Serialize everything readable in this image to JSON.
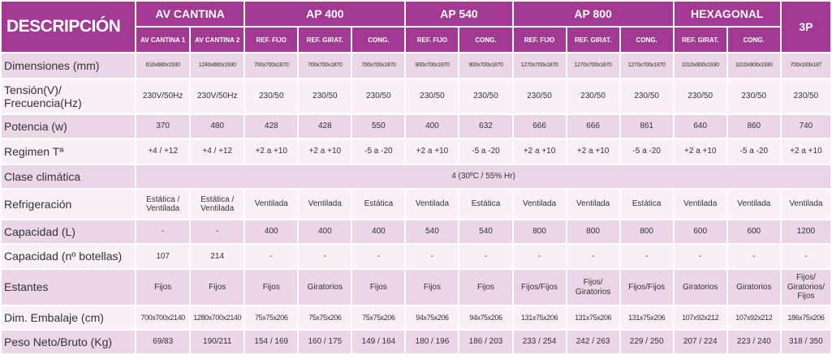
{
  "colors": {
    "header_bg": "#a23a94",
    "row_shaded": "#ead6e7",
    "row_light": "#f8f0f6",
    "text": "#333333"
  },
  "header": {
    "title": "DESCRIPCIÓN",
    "models": [
      "AV CANTINA",
      "AP 400",
      "AP 540",
      "AP 800",
      "HEXAGONAL",
      "3P"
    ],
    "sub": [
      "AV CANTINA 1",
      "AV CANTINA 2",
      "REF. FIJO",
      "REF. GIRAT.",
      "CONG.",
      "REF. FIJO",
      "CONG.",
      "REF. FIJO",
      "REF. GIRAT.",
      "CONG.",
      "REF. GIRAT.",
      "CONG."
    ]
  },
  "rows": [
    {
      "label": "Dimensiones (mm)",
      "values": [
        "610x680x1930",
        "1240x680x1930",
        "700x700x1870",
        "700x700x1870",
        "700x700x1870",
        "900x700x1870",
        "900x700x1870",
        "1270x700x1870",
        "1270x700x1870",
        "1270x700x1870",
        "1010x900x1930",
        "1010x900x1930",
        "700x183x187"
      ]
    },
    {
      "label": "Tensión(V)/ Frecuencia(Hz)",
      "values": [
        "230V/50Hz",
        "230V/50Hz",
        "230/50",
        "230/50",
        "230/50",
        "230/50",
        "230/50",
        "230/50",
        "230/50",
        "230/50",
        "230/50",
        "230/50",
        "230/50"
      ]
    },
    {
      "label": "Potencia (w)",
      "values": [
        "370",
        "480",
        "428",
        "428",
        "550",
        "400",
        "632",
        "666",
        "666",
        "861",
        "640",
        "860",
        "740"
      ]
    },
    {
      "label": "Regimen Tª",
      "values": [
        "+4 / +12",
        "+4 / +12",
        "+2 a +10",
        "+2 a +10",
        "-5 a -20",
        "+2 a +10",
        "-5 a -20",
        "+2 a +10",
        "+2 a +10",
        "-5 a -20",
        "+2 a +10",
        "-5 a -20",
        "+2 a +10"
      ]
    },
    {
      "label": "Clase climática",
      "span_value": "4 (30ºC / 55% Hr)"
    },
    {
      "label": "Refrigeración",
      "values": [
        "Estática / Ventilada",
        "Estática / Ventilada",
        "Ventilada",
        "Ventilada",
        "Estática",
        "Ventilada",
        "Estática",
        "Ventilada",
        "Ventilada",
        "Estática",
        "Ventilada",
        "Ventilada",
        "Ventilada"
      ]
    },
    {
      "label": "Capacidad (L)",
      "values": [
        "-",
        "-",
        "400",
        "400",
        "400",
        "540",
        "540",
        "800",
        "800",
        "800",
        "600",
        "600",
        "1200"
      ]
    },
    {
      "label": "Capacidad (nº botellas)",
      "values": [
        "107",
        "214",
        "-",
        "-",
        "-",
        "-",
        "-",
        "-",
        "-",
        "-",
        "-",
        "-",
        "-"
      ]
    },
    {
      "label": "Estantes",
      "values": [
        "Fijos",
        "Fijos",
        "Fijos",
        "Giratorios",
        "Fijos",
        "Fijos",
        "Fijos",
        "Fijos/Fijos",
        "Fijos/ Giratorios",
        "Fijos/Fijos",
        "Giratorios",
        "Giratorios",
        "Fijos/ Giratorios/ Fijos"
      ]
    },
    {
      "label": "Dim. Embalaje (cm)",
      "values": [
        "700x700x2140",
        "1280x700x2140",
        "75x75x206",
        "75x75x206",
        "75x75x206",
        "94x75x206",
        "94x75x206",
        "131x75x206",
        "131x75x206",
        "131x75x206",
        "107x92x212",
        "107x92x212",
        "186x75x206"
      ]
    },
    {
      "label": "Peso Neto/Bruto (Kg)",
      "values": [
        "69/83",
        "190/211",
        "154 / 169",
        "160 / 175",
        "149 / 164",
        "180 / 196",
        "186 / 203",
        "233 / 254",
        "242 / 263",
        "229 / 250",
        "207 / 224",
        "223 / 240",
        "318 / 350"
      ]
    }
  ]
}
